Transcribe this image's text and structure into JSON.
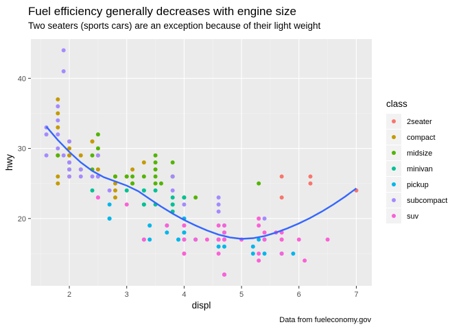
{
  "chart_data": {
    "type": "scatter",
    "title": "Fuel efficiency generally decreases with engine size",
    "subtitle": "Two seaters (sports cars) are an exception because of their light weight",
    "caption": "Data from fueleconomy.gov",
    "xlabel": "displ",
    "ylabel": "hwy",
    "xlim": [
      1.33,
      7.27
    ],
    "ylim": [
      10.4,
      45.6
    ],
    "xticks": [
      2,
      3,
      4,
      5,
      6,
      7
    ],
    "yticks": [
      20,
      30,
      40
    ],
    "grid": true,
    "legend": {
      "title": "class",
      "placement": "right"
    },
    "series": [
      {
        "name": "2seater",
        "color": "#F8766D",
        "points": [
          [
            5.7,
            26
          ],
          [
            5.7,
            23
          ],
          [
            6.2,
            26
          ],
          [
            6.2,
            25
          ],
          [
            7.0,
            24
          ]
        ]
      },
      {
        "name": "compact",
        "color": "#C49A00",
        "points": [
          [
            1.8,
            29
          ],
          [
            1.8,
            29
          ],
          [
            2.0,
            31
          ],
          [
            2.0,
            30
          ],
          [
            2.8,
            26
          ],
          [
            2.8,
            26
          ],
          [
            3.1,
            27
          ],
          [
            1.8,
            26
          ],
          [
            1.8,
            25
          ],
          [
            2.0,
            28
          ],
          [
            2.0,
            29
          ],
          [
            2.8,
            25
          ],
          [
            3.1,
            25
          ],
          [
            2.2,
            29
          ],
          [
            2.2,
            27
          ],
          [
            2.4,
            31
          ],
          [
            2.4,
            31
          ],
          [
            3.0,
            26
          ],
          [
            3.3,
            28
          ],
          [
            1.8,
            33
          ],
          [
            1.8,
            35
          ],
          [
            1.8,
            37
          ],
          [
            2.0,
            29
          ],
          [
            2.0,
            26
          ],
          [
            2.5,
            29
          ],
          [
            2.5,
            27
          ],
          [
            2.8,
            24
          ],
          [
            2.8,
            23
          ]
        ]
      },
      {
        "name": "midsize",
        "color": "#53B400",
        "points": [
          [
            2.4,
            27
          ],
          [
            2.5,
            30
          ],
          [
            2.5,
            32
          ],
          [
            3.1,
            26
          ],
          [
            3.5,
            29
          ],
          [
            3.5,
            28
          ],
          [
            3.8,
            26
          ],
          [
            3.8,
            28
          ],
          [
            4.2,
            23
          ],
          [
            2.0,
            27
          ],
          [
            2.4,
            29
          ],
          [
            2.5,
            26
          ],
          [
            3.0,
            26
          ],
          [
            3.3,
            26
          ],
          [
            3.5,
            27
          ],
          [
            3.5,
            26
          ],
          [
            3.8,
            26
          ],
          [
            1.8,
            29
          ],
          [
            2.0,
            28
          ],
          [
            2.8,
            26
          ],
          [
            3.1,
            25
          ],
          [
            3.5,
            25
          ],
          [
            3.6,
            25
          ],
          [
            4.0,
            23
          ],
          [
            5.3,
            25
          ]
        ]
      },
      {
        "name": "minivan",
        "color": "#00C094",
        "points": [
          [
            2.4,
            24
          ],
          [
            3.0,
            24
          ],
          [
            3.3,
            22
          ],
          [
            3.3,
            22
          ],
          [
            3.3,
            24
          ],
          [
            3.3,
            24
          ],
          [
            3.3,
            17
          ],
          [
            3.8,
            22
          ],
          [
            3.8,
            21
          ],
          [
            3.8,
            23
          ],
          [
            4.0,
            23
          ],
          [
            3.5,
            24
          ],
          [
            3.5,
            22
          ],
          [
            3.8,
            22
          ],
          [
            4.0,
            17
          ],
          [
            4.0,
            18
          ],
          [
            4.2,
            17
          ],
          [
            2.7,
            20
          ]
        ]
      },
      {
        "name": "pickup",
        "color": "#00B6EB",
        "points": [
          [
            3.7,
            19
          ],
          [
            3.7,
            18
          ],
          [
            3.9,
            17
          ],
          [
            3.9,
            17
          ],
          [
            4.7,
            17
          ],
          [
            4.7,
            16
          ],
          [
            5.2,
            15
          ],
          [
            5.7,
            15
          ],
          [
            5.9,
            15
          ],
          [
            3.4,
            17
          ],
          [
            4.0,
            20
          ],
          [
            4.2,
            17
          ],
          [
            4.6,
            16
          ],
          [
            4.6,
            17
          ],
          [
            5.4,
            17
          ],
          [
            5.4,
            15
          ],
          [
            4.7,
            19
          ],
          [
            4.7,
            18
          ],
          [
            2.7,
            20
          ],
          [
            2.7,
            22
          ],
          [
            3.4,
            19
          ],
          [
            3.4,
            19
          ],
          [
            4.0,
            20
          ],
          [
            4.0,
            18
          ],
          [
            4.7,
            12
          ],
          [
            5.2,
            16
          ],
          [
            5.3,
            17
          ]
        ]
      },
      {
        "name": "subcompact",
        "color": "#A58AFF",
        "points": [
          [
            1.8,
            36
          ],
          [
            1.8,
            34
          ],
          [
            1.8,
            32
          ],
          [
            1.6,
            33
          ],
          [
            1.6,
            32
          ],
          [
            1.6,
            29
          ],
          [
            1.9,
            44
          ],
          [
            1.9,
            41
          ],
          [
            1.9,
            29
          ],
          [
            2.0,
            26
          ],
          [
            2.0,
            28
          ],
          [
            2.2,
            26
          ],
          [
            2.5,
            26
          ],
          [
            2.5,
            29
          ],
          [
            2.7,
            24
          ],
          [
            3.8,
            26
          ],
          [
            4.6,
            23
          ],
          [
            4.6,
            22
          ],
          [
            5.4,
            20
          ],
          [
            2.0,
            27
          ],
          [
            2.0,
            28
          ],
          [
            2.2,
            27
          ],
          [
            2.4,
            26
          ],
          [
            3.8,
            24
          ],
          [
            4.0,
            22
          ],
          [
            4.6,
            21
          ],
          [
            5.0,
            17
          ],
          [
            1.8,
            30
          ],
          [
            2.0,
            31
          ]
        ]
      },
      {
        "name": "suv",
        "color": "#FB61D7",
        "points": [
          [
            5.3,
            20
          ],
          [
            5.3,
            15
          ],
          [
            5.3,
            20
          ],
          [
            5.7,
            17
          ],
          [
            6.0,
            17
          ],
          [
            5.3,
            19
          ],
          [
            5.3,
            14
          ],
          [
            5.7,
            15
          ],
          [
            6.5,
            17
          ],
          [
            3.7,
            19
          ],
          [
            4.7,
            12
          ],
          [
            4.7,
            17
          ],
          [
            4.7,
            19
          ],
          [
            4.7,
            17
          ],
          [
            5.7,
            17
          ],
          [
            6.1,
            14
          ],
          [
            4.0,
            19
          ],
          [
            4.0,
            19
          ],
          [
            4.0,
            15
          ],
          [
            4.6,
            17
          ],
          [
            5.4,
            17
          ],
          [
            5.4,
            18
          ],
          [
            2.5,
            23
          ],
          [
            2.5,
            23
          ],
          [
            3.3,
            17
          ],
          [
            3.0,
            22
          ],
          [
            4.0,
            15
          ],
          [
            4.0,
            17
          ],
          [
            4.2,
            17
          ],
          [
            4.6,
            19
          ],
          [
            4.7,
            18
          ],
          [
            5.0,
            17
          ],
          [
            5.7,
            18
          ],
          [
            5.6,
            18
          ],
          [
            4.4,
            17
          ],
          [
            4.7,
            12
          ],
          [
            4.6,
            15
          ],
          [
            4.6,
            17
          ],
          [
            4.7,
            12
          ]
        ]
      }
    ],
    "trend_line": {
      "color": "#3366FF",
      "x": [
        1.6,
        1.8,
        2.0,
        2.2,
        2.4,
        2.6,
        2.8,
        3.0,
        3.2,
        3.4,
        3.6,
        3.8,
        4.0,
        4.2,
        4.4,
        4.6,
        4.8,
        5.0,
        5.2,
        5.4,
        5.6,
        5.8,
        6.0,
        6.2,
        6.4,
        6.6,
        6.8,
        7.0
      ],
      "y": [
        33.1,
        31.2,
        29.5,
        28.0,
        26.8,
        25.9,
        25.3,
        24.7,
        23.9,
        22.8,
        21.7,
        20.7,
        19.8,
        19.0,
        18.3,
        17.7,
        17.3,
        17.1,
        17.2,
        17.5,
        18.0,
        18.6,
        19.3,
        20.1,
        21.0,
        22.0,
        23.1,
        24.3
      ]
    }
  }
}
